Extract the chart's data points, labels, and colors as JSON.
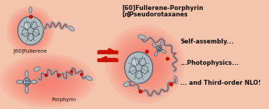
{
  "background_color": "#f5c4ad",
  "title_line1": "[60]Fullerene-Porphyrin",
  "title_line2_pre": "[",
  "title_line2_italic": "n",
  "title_line2_post": "]Pseudorotaxanes",
  "label_fullerene": "[60]Fullerene",
  "label_porphyrin": "Porphyrin",
  "text_right1": "Self-assembly...",
  "text_right2": "...Photophysics...",
  "text_right3": "... and Third-order NLO!",
  "arrow_color": "#cc1100",
  "red_glow": "#ff0000",
  "mol_face": "#b0b8bc",
  "mol_edge": "#506070",
  "red_accent": "#cc1100",
  "figsize": [
    3.78,
    1.53
  ],
  "dpi": 100
}
